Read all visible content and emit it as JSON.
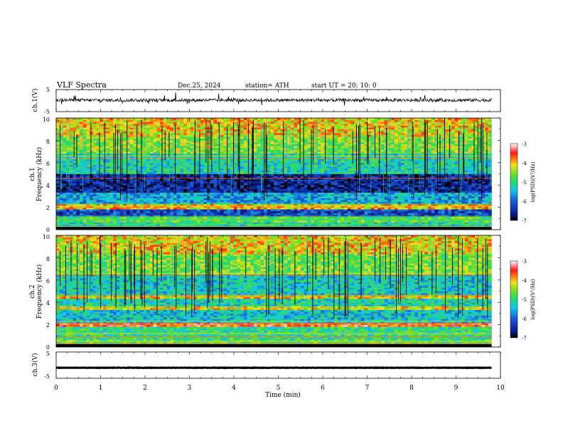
{
  "header": {
    "title": "VLF  Spectra",
    "date": "Dec.25, 2024",
    "station": "station= ATH",
    "start_ut": "start  UT  =   20: 10: 0"
  },
  "colors": {
    "spectro_low": "#0a1a8c",
    "spectro_mid": "#1a8de0",
    "spectro_high": "#39e05a",
    "spectro_peak": "#ff2a1a",
    "impulse": "#000000"
  },
  "chart_data": [
    {
      "type": "line",
      "name": "ch1-waveform",
      "ylabel": "ch.1(V)",
      "ylim": [
        -5,
        5
      ],
      "yticks": [
        "5",
        "-5"
      ],
      "xlim": [
        0,
        10
      ],
      "series_cut_min": 9.8,
      "baseline_v": 0.2
    },
    {
      "type": "heatmap",
      "name": "ch1-spectrogram",
      "ylabel_ch": "ch.1",
      "ylabel": "Frequency  (kHz)",
      "ylim": [
        0,
        10
      ],
      "yticks": [
        "10",
        "8",
        "6",
        "4",
        "2",
        "0"
      ],
      "xlim": [
        0,
        9.8
      ],
      "bands": [
        {
          "from": 0.0,
          "to": 0.6,
          "level": 0.45
        },
        {
          "from": 0.6,
          "to": 1.2,
          "level": 0.55
        },
        {
          "from": 1.2,
          "to": 1.9,
          "level": 0.2
        },
        {
          "from": 1.9,
          "to": 2.3,
          "level": 0.75
        },
        {
          "from": 2.3,
          "to": 3.3,
          "level": 0.35
        },
        {
          "from": 3.3,
          "to": 5.0,
          "level": 0.12
        },
        {
          "from": 5.0,
          "to": 6.8,
          "level": 0.45
        },
        {
          "from": 6.8,
          "to": 8.4,
          "level": 0.62
        },
        {
          "from": 8.4,
          "to": 10.0,
          "level": 0.72
        }
      ],
      "colorbar": {
        "label": "log(PSD)(V²/Hz)",
        "ticks": [
          "-3",
          "-4",
          "-5",
          "-6",
          "-7"
        ],
        "range": [
          -7,
          -3
        ]
      }
    },
    {
      "type": "heatmap",
      "name": "ch2-spectrogram",
      "ylabel_ch": "ch.2",
      "ylabel": "Frequency  (kHz)",
      "ylim": [
        0,
        10
      ],
      "yticks": [
        "10",
        "8",
        "6",
        "4",
        "2",
        "0"
      ],
      "xlim": [
        0,
        9.8
      ],
      "bands": [
        {
          "from": 0.0,
          "to": 0.6,
          "level": 0.55
        },
        {
          "from": 0.6,
          "to": 1.8,
          "level": 0.5
        },
        {
          "from": 1.8,
          "to": 2.2,
          "level": 0.85
        },
        {
          "from": 2.2,
          "to": 3.4,
          "level": 0.4
        },
        {
          "from": 3.4,
          "to": 3.7,
          "level": 0.7
        },
        {
          "from": 3.7,
          "to": 4.4,
          "level": 0.45
        },
        {
          "from": 4.4,
          "to": 4.7,
          "level": 0.72
        },
        {
          "from": 4.7,
          "to": 6.5,
          "level": 0.42
        },
        {
          "from": 6.5,
          "to": 8.4,
          "level": 0.6
        },
        {
          "from": 8.4,
          "to": 10.0,
          "level": 0.72
        }
      ],
      "colorbar": {
        "label": "log(PSD)(V²/Hz)",
        "ticks": [
          "-3",
          "-4",
          "-5",
          "-6",
          "-7"
        ],
        "range": [
          -7,
          -3
        ]
      }
    },
    {
      "type": "line",
      "name": "ch3-waveform",
      "ylabel": "ch.3(V)",
      "ylim": [
        -5,
        5
      ],
      "yticks": [
        "5",
        "-5"
      ],
      "xlim": [
        0,
        10
      ],
      "series_cut_min": 9.8,
      "baseline_v": -1.0,
      "xlabel": "Time  (min)",
      "xticks": [
        "0",
        "1",
        "2",
        "3",
        "4",
        "5",
        "6",
        "7",
        "8",
        "9",
        "10"
      ]
    }
  ]
}
